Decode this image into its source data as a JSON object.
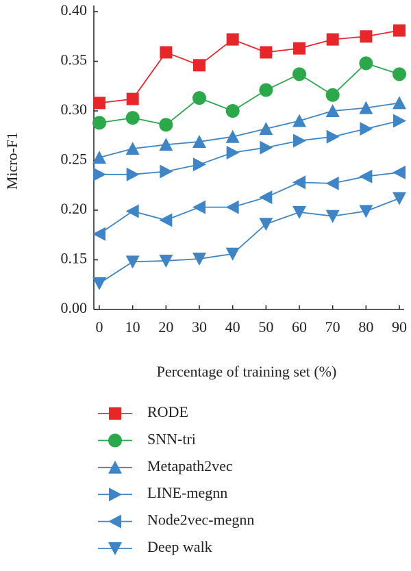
{
  "chart_data": {
    "type": "line",
    "xlabel": "Percentage of training set (%)",
    "ylabel": "Micro-F1",
    "x": [
      0,
      10,
      20,
      30,
      40,
      50,
      60,
      70,
      80,
      90
    ],
    "xlim": [
      0,
      90
    ],
    "xticks": [
      0,
      10,
      20,
      30,
      40,
      50,
      60,
      70,
      80,
      90
    ],
    "ylim": [
      0,
      0.4
    ],
    "yticks": [
      {
        "value": 0,
        "label": "0.00"
      },
      0.15,
      {
        "value": 0.2,
        "label": "0.20"
      },
      0.25,
      {
        "value": 0.3,
        "label": "0.30"
      },
      0.35,
      {
        "value": 0.4,
        "label": "0.40"
      }
    ],
    "legend": "below",
    "series": [
      {
        "name": "RODE",
        "color": "#e8262a",
        "marker": "square",
        "values": [
          0.308,
          0.312,
          0.359,
          0.346,
          0.372,
          0.359,
          0.363,
          0.372,
          0.375,
          0.381
        ]
      },
      {
        "name": "SNN-tri",
        "color": "#2aa84a",
        "marker": "circle",
        "values": [
          0.288,
          0.293,
          0.286,
          0.313,
          0.3,
          0.321,
          0.337,
          0.316,
          0.348,
          0.337
        ]
      },
      {
        "name": "Metapath2vec",
        "color": "#3d85c6",
        "marker": "triangle-up",
        "values": [
          0.253,
          0.262,
          0.266,
          0.269,
          0.274,
          0.282,
          0.29,
          0.3,
          0.303,
          0.308
        ]
      },
      {
        "name": "LINE-megnn",
        "color": "#3d85c6",
        "marker": "triangle-right",
        "values": [
          0.236,
          0.236,
          0.239,
          0.246,
          0.258,
          0.263,
          0.27,
          0.274,
          0.282,
          0.29
        ]
      },
      {
        "name": "Node2vec-megnn",
        "color": "#3d85c6",
        "marker": "triangle-left",
        "values": [
          0.176,
          0.199,
          0.19,
          0.203,
          0.203,
          0.213,
          0.228,
          0.227,
          0.234,
          0.238
        ]
      },
      {
        "name": "Deep walk",
        "color": "#3d85c6",
        "marker": "triangle-down",
        "values": [
          0.079,
          0.144,
          0.147,
          0.151,
          0.156,
          0.186,
          0.198,
          0.194,
          0.199,
          0.212
        ]
      }
    ]
  }
}
